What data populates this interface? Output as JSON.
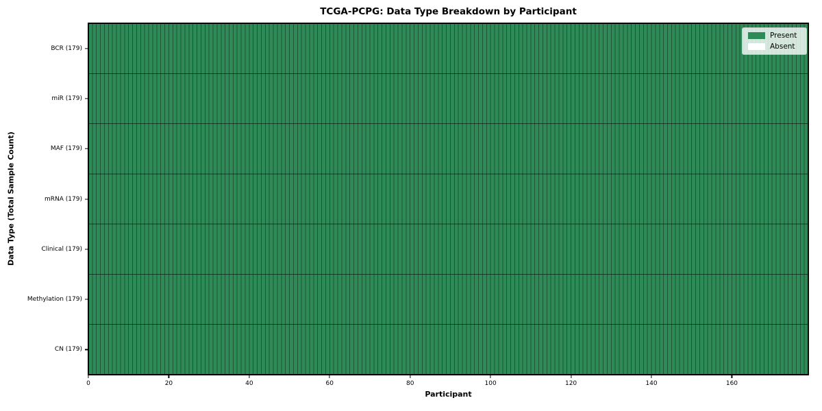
{
  "chart_data": {
    "type": "heatmap",
    "title": "TCGA-PCPG: Data Type Breakdown by Participant",
    "xlabel": "Participant",
    "ylabel": "Data Type (Total Sample Count)",
    "xlim": [
      0,
      179
    ],
    "n_participants": 179,
    "x_ticks": [
      0,
      20,
      40,
      60,
      80,
      100,
      120,
      140,
      160
    ],
    "rows": [
      {
        "label": "BCR (179)",
        "data_type": "BCR",
        "total_sample_count": 179,
        "present": 179,
        "absent": 0
      },
      {
        "label": "miR (179)",
        "data_type": "miR",
        "total_sample_count": 179,
        "present": 179,
        "absent": 0
      },
      {
        "label": "MAF (179)",
        "data_type": "MAF",
        "total_sample_count": 179,
        "present": 179,
        "absent": 0
      },
      {
        "label": "mRNA (179)",
        "data_type": "mRNA",
        "total_sample_count": 179,
        "present": 179,
        "absent": 0
      },
      {
        "label": "Clinical (179)",
        "data_type": "Clinical",
        "total_sample_count": 179,
        "present": 179,
        "absent": 0
      },
      {
        "label": "Methylation (179)",
        "data_type": "Methylation",
        "total_sample_count": 179,
        "present": 179,
        "absent": 0
      },
      {
        "label": "CN (179)",
        "data_type": "CN",
        "total_sample_count": 179,
        "present": 179,
        "absent": 0
      }
    ],
    "legend": {
      "position": "upper-right",
      "entries": [
        {
          "label": "Present",
          "color": "#2e8b57"
        },
        {
          "label": "Absent",
          "color": "#ffffff"
        }
      ]
    },
    "colors": {
      "present": "#2e8b57",
      "absent": "#ffffff",
      "cell_border": "rgba(0,0,0,0.38)",
      "row_border": "rgba(0,0,0,0.55)",
      "spine": "#000000"
    }
  }
}
